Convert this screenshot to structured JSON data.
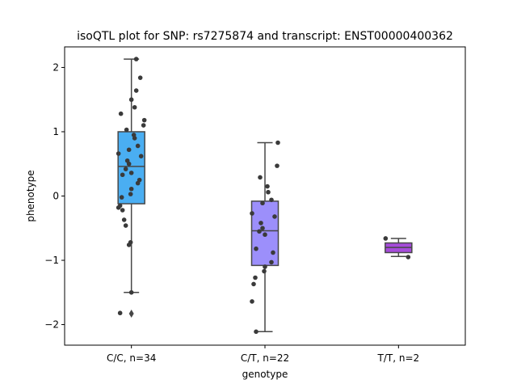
{
  "chart_data": {
    "type": "boxplot",
    "title": "isoQTL plot for SNP: rs7275874 and transcript: ENST00000400362",
    "xlabel": "genotype",
    "ylabel": "phenotype",
    "ylim": [
      -2.32,
      2.32
    ],
    "yticks": [
      -2,
      -1,
      0,
      1,
      2
    ],
    "yticklabels": [
      "−2",
      "−1",
      "0",
      "1",
      "2"
    ],
    "grid": false,
    "categories": [
      "C/C, n=34",
      "C/T, n=22",
      "T/T, n=2"
    ],
    "box_colors": [
      "#4aaef2",
      "#9c8ffb",
      "#a64bdb"
    ],
    "boxes": [
      {
        "category": "C/C, n=34",
        "whisker_low": -1.5,
        "q1": -0.12,
        "median": 0.46,
        "q3": 1.0,
        "whisker_high": 2.13,
        "outliers": [
          -1.83
        ]
      },
      {
        "category": "C/T, n=22",
        "whisker_low": -2.11,
        "q1": -1.08,
        "median": -0.54,
        "q3": -0.08,
        "whisker_high": 0.83,
        "outliers": []
      },
      {
        "category": "T/T, n=2",
        "whisker_low": -0.94,
        "q1": -0.88,
        "median": -0.8,
        "q3": -0.73,
        "whisker_high": -0.66,
        "outliers": []
      }
    ],
    "points": [
      [
        -1.82,
        2.13,
        1.84,
        1.64,
        1.5,
        1.38,
        1.28,
        1.18,
        1.1,
        1.03,
        0.95,
        0.9,
        0.78,
        0.72,
        0.66,
        0.62,
        0.55,
        0.5,
        0.42,
        0.36,
        0.33,
        0.25,
        0.2,
        0.11,
        0.03,
        -0.02,
        -0.15,
        -0.18,
        -0.22,
        -0.37,
        -0.46,
        -0.72,
        -0.76,
        -1.5
      ],
      [
        0.83,
        0.47,
        0.29,
        0.15,
        0.06,
        -0.06,
        -0.11,
        -0.27,
        -0.32,
        -0.42,
        -0.5,
        -0.55,
        -0.6,
        -0.82,
        -0.88,
        -1.03,
        -1.1,
        -1.17,
        -1.27,
        -1.37,
        -1.64,
        -2.11
      ],
      [
        -0.66,
        -0.95
      ]
    ]
  }
}
